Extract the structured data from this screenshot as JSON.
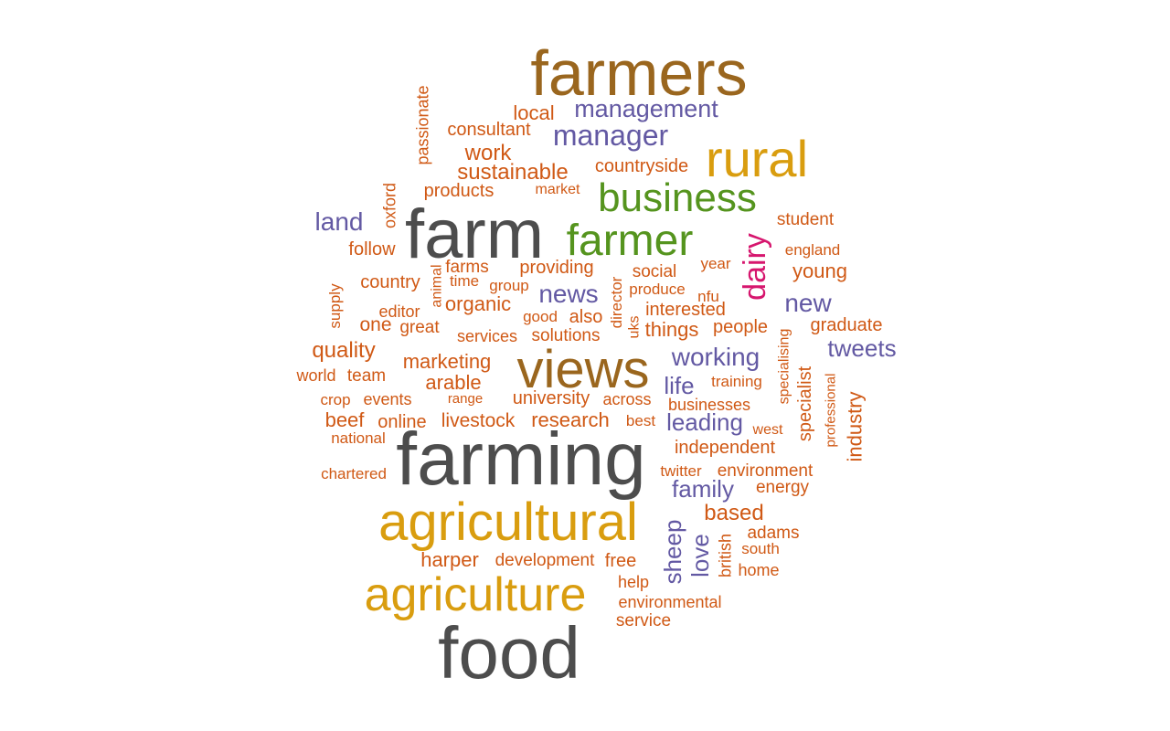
{
  "colors": {
    "dark": "#4d4d4d",
    "brown": "#9a661e",
    "gold": "#d99d0f",
    "green": "#55941e",
    "purple": "#6359a3",
    "orange": "#d05915",
    "pink": "#d6166e"
  },
  "words": [
    {
      "text": "food",
      "color": "dark"
    },
    {
      "text": "farming",
      "color": "dark"
    },
    {
      "text": "farm",
      "color": "dark"
    },
    {
      "text": "farmers",
      "color": "brown"
    },
    {
      "text": "views",
      "color": "brown"
    },
    {
      "text": "agricultural",
      "color": "gold"
    },
    {
      "text": "agriculture",
      "color": "gold"
    },
    {
      "text": "rural",
      "color": "gold"
    },
    {
      "text": "farmer",
      "color": "green"
    },
    {
      "text": "business",
      "color": "green"
    },
    {
      "text": "dairy",
      "color": "pink"
    },
    {
      "text": "management",
      "color": "purple"
    },
    {
      "text": "manager",
      "color": "purple"
    },
    {
      "text": "land",
      "color": "purple"
    },
    {
      "text": "news",
      "color": "purple"
    },
    {
      "text": "new",
      "color": "purple"
    },
    {
      "text": "tweets",
      "color": "purple"
    },
    {
      "text": "working",
      "color": "purple"
    },
    {
      "text": "life",
      "color": "purple"
    },
    {
      "text": "leading",
      "color": "purple"
    },
    {
      "text": "family",
      "color": "purple"
    },
    {
      "text": "sheep",
      "color": "purple"
    },
    {
      "text": "love",
      "color": "purple"
    },
    {
      "text": "local",
      "color": "orange"
    },
    {
      "text": "consultant",
      "color": "orange"
    },
    {
      "text": "work",
      "color": "orange"
    },
    {
      "text": "sustainable",
      "color": "orange"
    },
    {
      "text": "countryside",
      "color": "orange"
    },
    {
      "text": "products",
      "color": "orange"
    },
    {
      "text": "market",
      "color": "orange"
    },
    {
      "text": "passionate",
      "color": "orange"
    },
    {
      "text": "oxford",
      "color": "orange"
    },
    {
      "text": "student",
      "color": "orange"
    },
    {
      "text": "follow",
      "color": "orange"
    },
    {
      "text": "england",
      "color": "orange"
    },
    {
      "text": "farms",
      "color": "orange"
    },
    {
      "text": "providing",
      "color": "orange"
    },
    {
      "text": "social",
      "color": "orange"
    },
    {
      "text": "year",
      "color": "orange"
    },
    {
      "text": "young",
      "color": "orange"
    },
    {
      "text": "country",
      "color": "orange"
    },
    {
      "text": "time",
      "color": "orange"
    },
    {
      "text": "group",
      "color": "orange"
    },
    {
      "text": "produce",
      "color": "orange"
    },
    {
      "text": "supply",
      "color": "orange"
    },
    {
      "text": "animal",
      "color": "orange"
    },
    {
      "text": "organic",
      "color": "orange"
    },
    {
      "text": "director",
      "color": "orange"
    },
    {
      "text": "nfu",
      "color": "orange"
    },
    {
      "text": "editor",
      "color": "orange"
    },
    {
      "text": "good",
      "color": "orange"
    },
    {
      "text": "also",
      "color": "orange"
    },
    {
      "text": "interested",
      "color": "orange"
    },
    {
      "text": "one",
      "color": "orange"
    },
    {
      "text": "great",
      "color": "orange"
    },
    {
      "text": "services",
      "color": "orange"
    },
    {
      "text": "solutions",
      "color": "orange"
    },
    {
      "text": "uks",
      "color": "orange"
    },
    {
      "text": "things",
      "color": "orange"
    },
    {
      "text": "people",
      "color": "orange"
    },
    {
      "text": "graduate",
      "color": "orange"
    },
    {
      "text": "quality",
      "color": "orange"
    },
    {
      "text": "specialising",
      "color": "orange"
    },
    {
      "text": "marketing",
      "color": "orange"
    },
    {
      "text": "specialist",
      "color": "orange"
    },
    {
      "text": "world",
      "color": "orange"
    },
    {
      "text": "team",
      "color": "orange"
    },
    {
      "text": "arable",
      "color": "orange"
    },
    {
      "text": "training",
      "color": "orange"
    },
    {
      "text": "professional",
      "color": "orange"
    },
    {
      "text": "crop",
      "color": "orange"
    },
    {
      "text": "events",
      "color": "orange"
    },
    {
      "text": "range",
      "color": "orange"
    },
    {
      "text": "university",
      "color": "orange"
    },
    {
      "text": "across",
      "color": "orange"
    },
    {
      "text": "businesses",
      "color": "orange"
    },
    {
      "text": "industry",
      "color": "orange"
    },
    {
      "text": "beef",
      "color": "orange"
    },
    {
      "text": "online",
      "color": "orange"
    },
    {
      "text": "livestock",
      "color": "orange"
    },
    {
      "text": "research",
      "color": "orange"
    },
    {
      "text": "best",
      "color": "orange"
    },
    {
      "text": "west",
      "color": "orange"
    },
    {
      "text": "national",
      "color": "orange"
    },
    {
      "text": "independent",
      "color": "orange"
    },
    {
      "text": "chartered",
      "color": "orange"
    },
    {
      "text": "twitter",
      "color": "orange"
    },
    {
      "text": "environment",
      "color": "orange"
    },
    {
      "text": "energy",
      "color": "orange"
    },
    {
      "text": "based",
      "color": "orange"
    },
    {
      "text": "adams",
      "color": "orange"
    },
    {
      "text": "british",
      "color": "orange"
    },
    {
      "text": "south",
      "color": "orange"
    },
    {
      "text": "harper",
      "color": "orange"
    },
    {
      "text": "development",
      "color": "orange"
    },
    {
      "text": "free",
      "color": "orange"
    },
    {
      "text": "home",
      "color": "orange"
    },
    {
      "text": "help",
      "color": "orange"
    },
    {
      "text": "environmental",
      "color": "orange"
    },
    {
      "text": "service",
      "color": "orange"
    }
  ]
}
